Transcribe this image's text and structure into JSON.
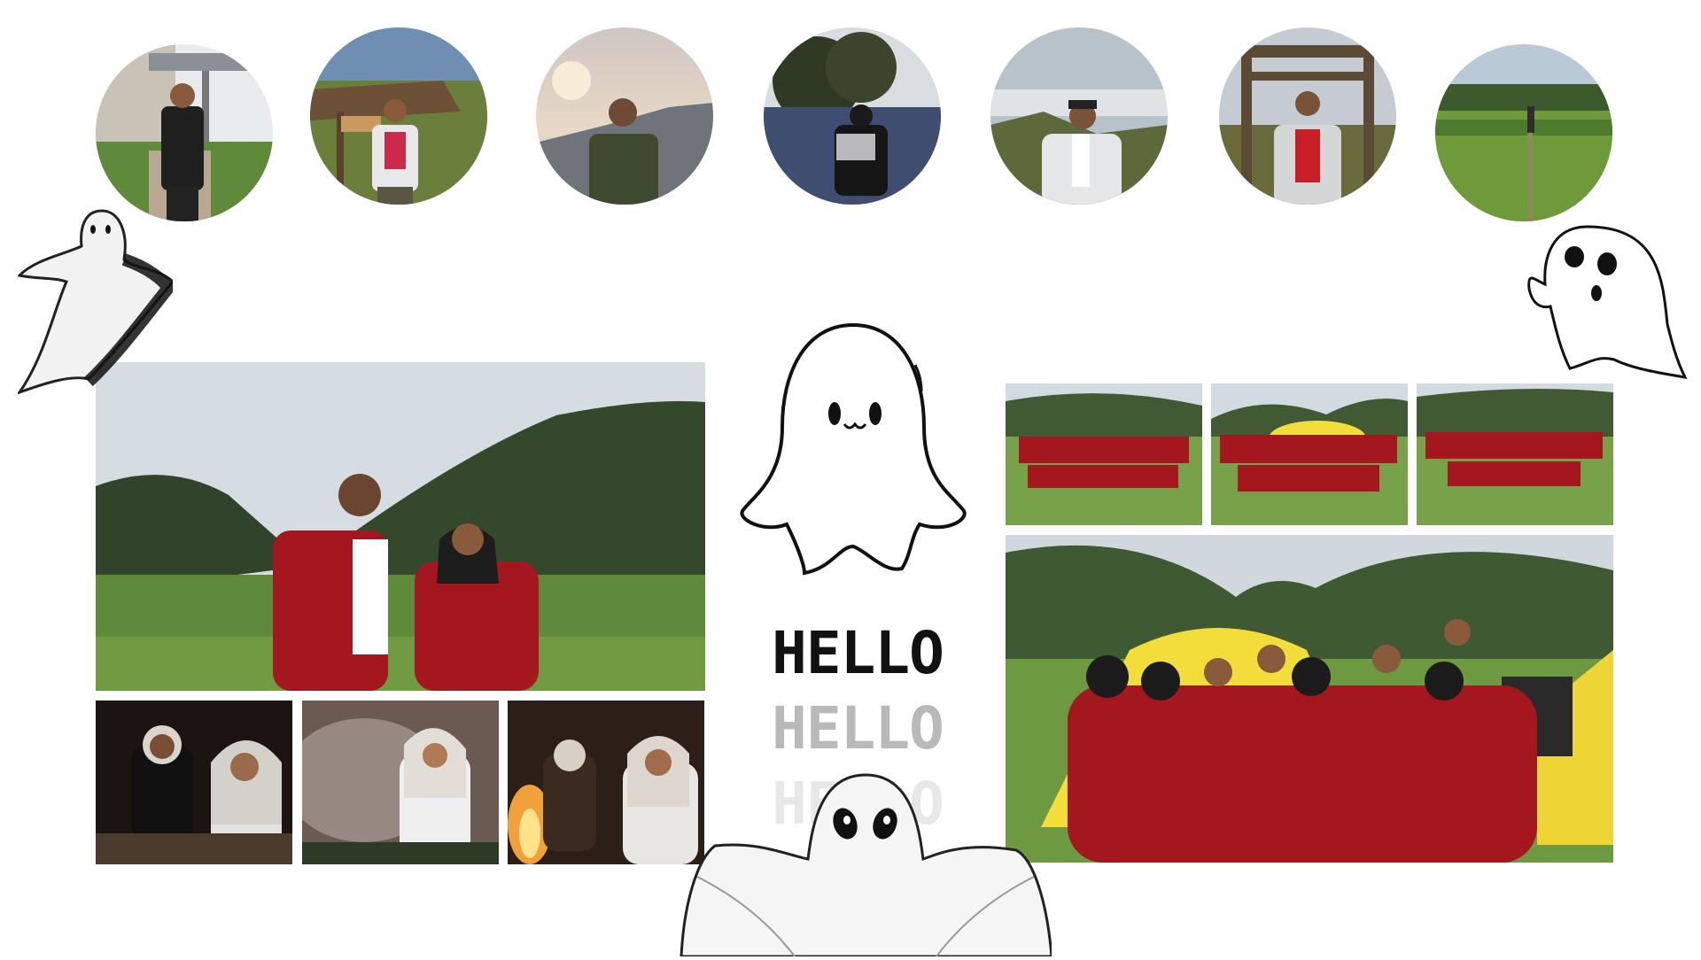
{
  "hello": {
    "line1": "HELLO",
    "line2": "HELLO",
    "line3": "HELLO"
  },
  "colors": {
    "background": "#ffffff",
    "jacket_red": "#a4171f",
    "forest": "#31432a",
    "grass": "#5f8a3a",
    "sky": "#d6dde2",
    "tent_yellow": "#f2dd3a",
    "night": "#1c1410",
    "hello_dark": "#111111",
    "hello_mid": "#b9b9b9",
    "hello_light": "#e8e8e8"
  },
  "icons": [
    "ghost-icon"
  ]
}
